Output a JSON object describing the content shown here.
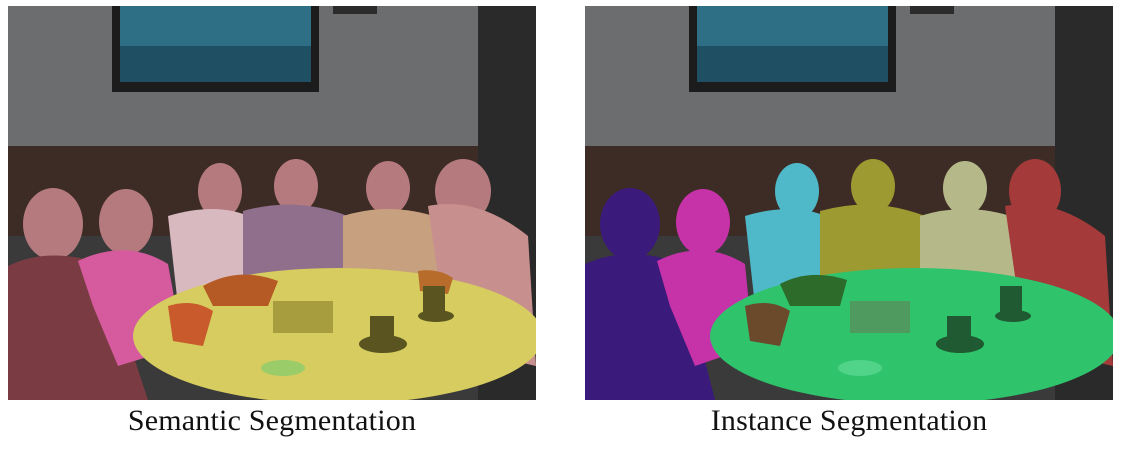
{
  "figure": {
    "panels": [
      {
        "caption": "Semantic Segmentation",
        "colors": {
          "person": "#b97b7e",
          "table": "#d8cf5c",
          "plant": "#c65a2e",
          "wall": "#6f7072",
          "wainscot": "#3b2a24"
        }
      },
      {
        "caption": "Instance Segmentation",
        "colors": {
          "person_1": "#3a1a7a",
          "person_2": "#c633a8",
          "person_3": "#4fb7c8",
          "person_4": "#9a9a32",
          "person_5": "#b4b88a",
          "person_6": "#a23a3a",
          "table": "#2ec46a",
          "wall": "#6f7072",
          "wainscot": "#3b2a24"
        }
      }
    ]
  }
}
